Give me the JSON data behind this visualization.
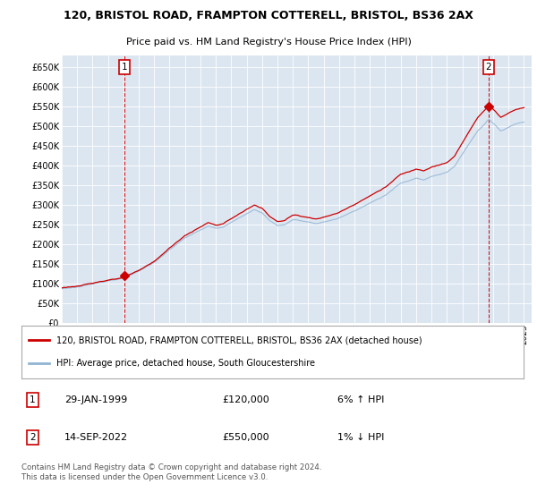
{
  "title": "120, BRISTOL ROAD, FRAMPTON COTTERELL, BRISTOL, BS36 2AX",
  "subtitle": "Price paid vs. HM Land Registry's House Price Index (HPI)",
  "background_color": "#dce6f1",
  "plot_bg_color": "#dce6f1",
  "grid_color": "#ffffff",
  "hpi_color": "#92b4d4",
  "price_color": "#cc0000",
  "annotation_box_color": "#cc0000",
  "ylim": [
    0,
    680000
  ],
  "yticks": [
    0,
    50000,
    100000,
    150000,
    200000,
    250000,
    300000,
    350000,
    400000,
    450000,
    500000,
    550000,
    600000,
    650000
  ],
  "ytick_labels": [
    "£0",
    "£50K",
    "£100K",
    "£150K",
    "£200K",
    "£250K",
    "£300K",
    "£350K",
    "£400K",
    "£450K",
    "£500K",
    "£550K",
    "£600K",
    "£650K"
  ],
  "legend_line1": "120, BRISTOL ROAD, FRAMPTON COTTERELL, BRISTOL, BS36 2AX (detached house)",
  "legend_line2": "HPI: Average price, detached house, South Gloucestershire",
  "annotation1_date": "29-JAN-1999",
  "annotation1_price": "£120,000",
  "annotation1_hpi": "6% ↑ HPI",
  "annotation2_date": "14-SEP-2022",
  "annotation2_price": "£550,000",
  "annotation2_hpi": "1% ↓ HPI",
  "footer": "Contains HM Land Registry data © Crown copyright and database right 2024.\nThis data is licensed under the Open Government Licence v3.0.",
  "sale1_year": 1999.08,
  "sale1_price": 120000,
  "sale2_year": 2022.71,
  "sale2_price": 550000,
  "xlim_left": 1995,
  "xlim_right": 2025.5
}
